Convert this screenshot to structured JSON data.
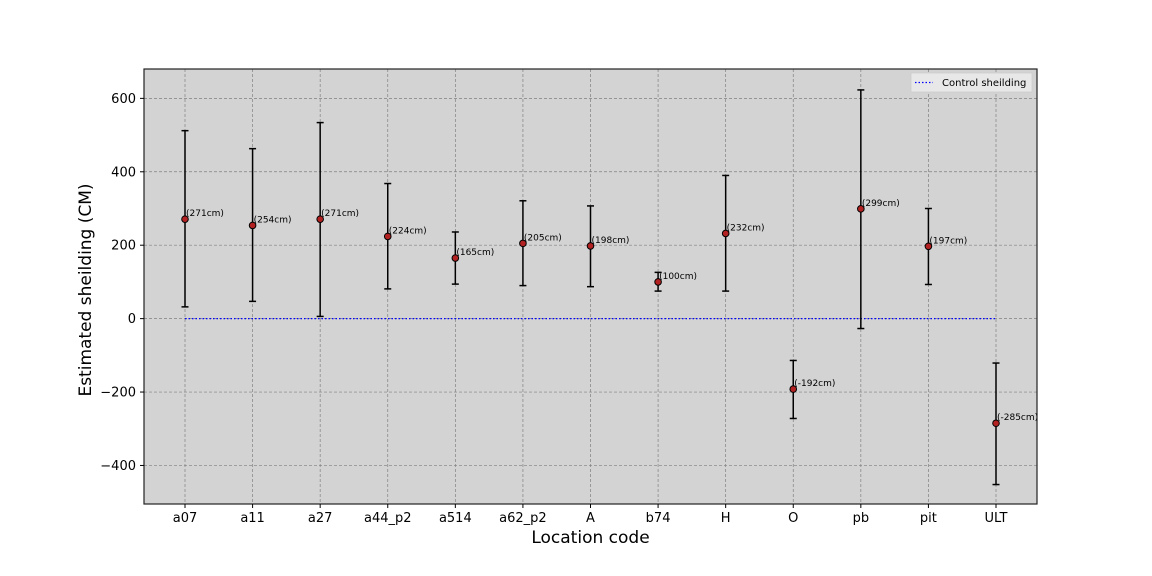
{
  "chart_data": {
    "type": "scatter",
    "title": "",
    "xlabel": "Location code",
    "ylabel": "Estimated sheilding (CM)",
    "categories": [
      "a07",
      "a11",
      "a27",
      "a44_p2",
      "a514",
      "a62_p2",
      "A",
      "b74",
      "H",
      "O",
      "pb",
      "pit",
      "ULT"
    ],
    "values": [
      271,
      254,
      271,
      224,
      165,
      205,
      198,
      100,
      232,
      -192,
      299,
      197,
      -285
    ],
    "error_low": [
      32,
      47,
      6,
      81,
      94,
      90,
      87,
      75,
      75,
      -272,
      -27,
      93,
      -452
    ],
    "error_high": [
      512,
      463,
      534,
      368,
      236,
      321,
      307,
      126,
      390,
      -114,
      623,
      300,
      -121
    ],
    "data_labels": [
      "(271cm)",
      "(254cm)",
      "(271cm)",
      "(224cm)",
      "(165cm)",
      "(205cm)",
      "(198cm)",
      "(100cm)",
      "(232cm)",
      "(-192cm)",
      "(299cm)",
      "(197cm)",
      "(-285cm)"
    ],
    "ylim": [
      -505,
      680
    ],
    "yticks": [
      -400,
      -200,
      0,
      200,
      400,
      600
    ],
    "ytick_labels": [
      "−400",
      "−200",
      "0",
      "200",
      "400",
      "600"
    ],
    "reference_line": {
      "name": "Control sheilding",
      "y": 0,
      "style": "dotted",
      "color": "#0000ff"
    },
    "legend_position": "top-right",
    "grid": true,
    "colors": {
      "plot_background": "#d3d3d3",
      "marker_fill": "#b22222",
      "marker_edge": "#000000",
      "error_bar": "#000000",
      "grid": "#808080"
    }
  }
}
